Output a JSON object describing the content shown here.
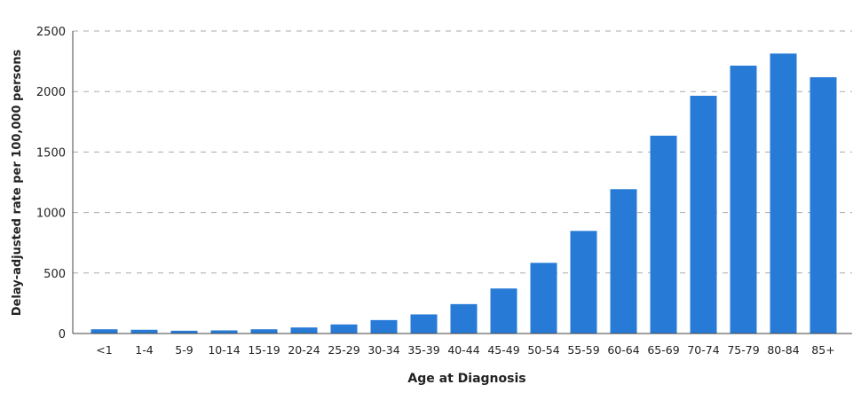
{
  "chart_data": {
    "type": "bar",
    "title": "",
    "xlabel": "Age at Diagnosis",
    "ylabel": "Delay-adjusted rate per 100,000 persons",
    "ylim": [
      0,
      2500
    ],
    "yticks": [
      0,
      500,
      1000,
      1500,
      2000,
      2500
    ],
    "grid": "horizontal dashed",
    "bar_color": "#277bd6",
    "categories": [
      "<1",
      "1-4",
      "5-9",
      "10-14",
      "15-19",
      "20-24",
      "25-29",
      "30-34",
      "35-39",
      "40-44",
      "45-49",
      "50-54",
      "55-59",
      "60-64",
      "65-69",
      "70-74",
      "75-79",
      "80-84",
      "85+"
    ],
    "values": [
      35,
      31,
      23,
      26,
      35,
      50,
      75,
      111,
      158,
      243,
      372,
      584,
      848,
      1193,
      1635,
      1965,
      2214,
      2314,
      2118
    ]
  }
}
